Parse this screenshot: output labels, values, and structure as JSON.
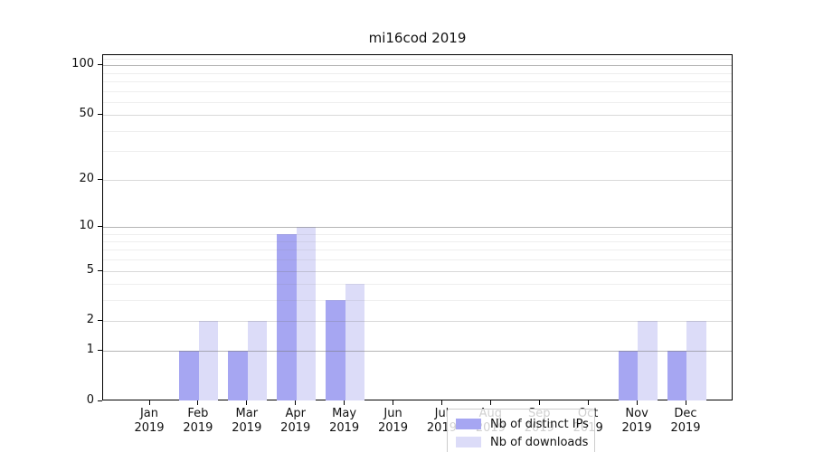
{
  "title": "mi16cod 2019",
  "colors": {
    "distinct_ips": "#a6a6f2",
    "downloads": "#dcdcf8",
    "grid_major": "rgba(120,120,120,0.55)",
    "grid_labeled": "rgba(120,120,120,0.28)",
    "grid_minor": "rgba(120,120,120,0.13)",
    "spine": "#000000"
  },
  "legend": {
    "items": [
      {
        "label": "Nb of distinct IPs",
        "color_key": "distinct_ips"
      },
      {
        "label": "Nb of downloads",
        "color_key": "downloads"
      }
    ]
  },
  "x_axis": {
    "months": [
      "Jan",
      "Feb",
      "Mar",
      "Apr",
      "May",
      "Jun",
      "Jul",
      "Aug",
      "Sep",
      "Oct",
      "Nov",
      "Dec"
    ],
    "year": "2019"
  },
  "y_axis": {
    "tick_values": [
      0,
      1,
      2,
      5,
      10,
      20,
      50,
      100
    ],
    "major_grid_values": [
      1,
      10,
      100
    ],
    "minor_grid_values": [
      3,
      4,
      6,
      7,
      8,
      9,
      30,
      40,
      60,
      70,
      80,
      90,
      110
    ]
  },
  "chart_data": {
    "type": "bar",
    "title": "mi16cod 2019",
    "categories": [
      "Jan 2019",
      "Feb 2019",
      "Mar 2019",
      "Apr 2019",
      "May 2019",
      "Jun 2019",
      "Jul 2019",
      "Aug 2019",
      "Sep 2019",
      "Oct 2019",
      "Nov 2019",
      "Dec 2019"
    ],
    "series": [
      {
        "name": "Nb of distinct IPs",
        "values": [
          0,
          1,
          1,
          9,
          3,
          0,
          0,
          0,
          0,
          0,
          1,
          1
        ]
      },
      {
        "name": "Nb of downloads",
        "values": [
          0,
          2,
          2,
          10,
          4,
          0,
          0,
          0,
          0,
          0,
          2,
          2
        ]
      }
    ],
    "xlabel": "",
    "ylabel": "",
    "yticks": [
      0,
      1,
      2,
      5,
      10,
      20,
      50,
      100
    ],
    "yscale": "log-like (log10 of 1+value)",
    "ylim": [
      0,
      115
    ],
    "grid": true,
    "legend_position": "lower center, inside axes"
  }
}
